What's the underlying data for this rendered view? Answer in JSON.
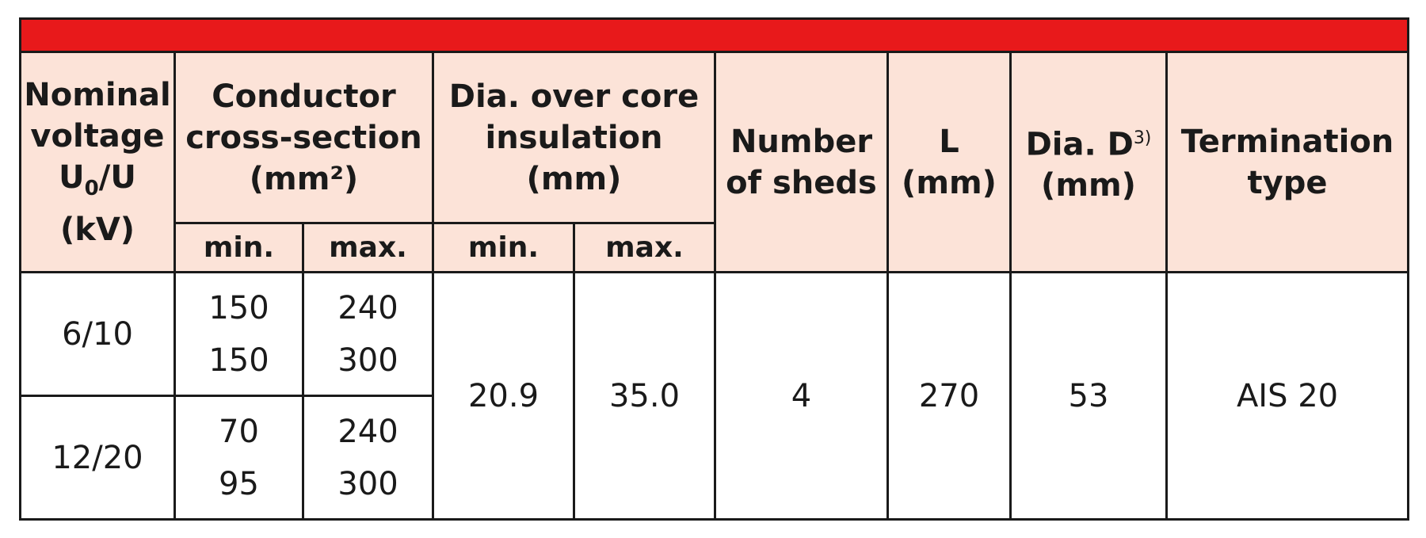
{
  "headers": {
    "nominal_voltage": [
      "Nominal",
      "voltage"
    ],
    "nominal_voltage_symbol": "U",
    "nominal_voltage_subscript": "0",
    "nominal_voltage_rest": "/U",
    "nominal_voltage_unit": "(kV)",
    "conductor": [
      "Conductor",
      "cross-section",
      "(mm²)"
    ],
    "dia_core": [
      "Dia. over core",
      "insulation",
      "(mm)"
    ],
    "sheds": [
      "Number",
      "of sheds"
    ],
    "length": [
      "L",
      "(mm)"
    ],
    "dia_d": "Dia. D",
    "dia_d_sup": "3)",
    "dia_d_unit": "(mm)",
    "termination": [
      "Termination",
      "type"
    ],
    "min": "min.",
    "max": "max."
  },
  "rows": [
    {
      "voltage": "6/10",
      "conductor_min": [
        "150",
        "150"
      ],
      "conductor_max": [
        "240",
        "300"
      ]
    },
    {
      "voltage": "12/20",
      "conductor_min": [
        "70",
        "95"
      ],
      "conductor_max": [
        "240",
        "300"
      ]
    }
  ],
  "shared": {
    "dia_min": "20.9",
    "dia_max": "35.0",
    "sheds": "4",
    "length": "270",
    "dia_d": "53",
    "termination": "AIS 20"
  },
  "colors": {
    "header_bar": "#e8191b",
    "header_bg": "#fce3d8",
    "border": "#1a1a1a"
  }
}
